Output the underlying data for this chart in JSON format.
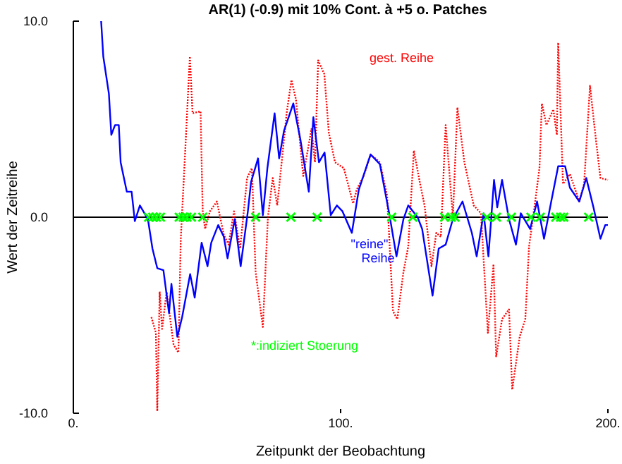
{
  "chart_data": {
    "type": "line",
    "title": "AR(1) (-0.9) mit 10% Cont. à +5 o. Patches",
    "xlabel": "Zeitpunkt der Beobachtung",
    "ylabel": "Wert der Zeitreihe",
    "xlim": [
      0,
      200
    ],
    "xticks": [
      {
        "value": 0,
        "label": "0."
      },
      {
        "value": 100,
        "label": "100."
      },
      {
        "value": 200,
        "label": "200."
      }
    ],
    "ylim": [
      -10,
      10
    ],
    "yticks": [
      {
        "value": -10,
        "label": "-10.0"
      },
      {
        "value": 0,
        "label": "0.0"
      },
      {
        "value": 10,
        "label": "10.0"
      }
    ],
    "grid": false,
    "ref_lines": [
      {
        "axis": "y",
        "value": 0,
        "color": "#000000"
      }
    ],
    "series": [
      {
        "name": "gest. Reihe",
        "color": "#ff0000",
        "line_style": "dotted",
        "x": [
          29.2,
          30.9,
          31.4,
          32.3,
          33.2,
          34.9,
          37.5,
          39.3,
          40.2,
          41.9,
          43.6,
          44.6,
          47.6,
          48.4,
          49.3,
          51.1,
          53.7,
          56.3,
          58.1,
          60.1,
          62.4,
          65,
          66.8,
          68.2,
          70.9,
          72.8,
          74.6,
          76.3,
          79.8,
          81.6,
          83.3,
          86,
          89.1,
          90.4,
          91.6,
          93.9,
          95.6,
          97.9,
          101.2,
          104.7,
          106,
          108.6,
          111.2,
          114.7,
          117.4,
          119.6,
          121.2,
          123.5,
          125.3,
          127.4,
          129.6,
          131.4,
          134,
          135.8,
          137.5,
          139.3,
          142,
          143.7,
          146.3,
          149.8,
          152.5,
          155.1,
          157.2,
          158.2,
          160.4,
          163,
          164.2,
          167,
          169.1,
          170.5,
          172.6,
          174.4,
          175.3,
          177,
          179.6,
          180.9,
          181.4,
          183.2,
          185.8,
          189.3,
          191.1,
          193.3,
          195.4,
          197.2,
          200
        ],
        "values": [
          -5.1,
          -5.9,
          -9.9,
          -3.8,
          -5.7,
          -3.8,
          -6.5,
          -6.9,
          -1.1,
          3.5,
          8.2,
          5.3,
          5.4,
          0.3,
          -0.6,
          0.3,
          0.8,
          -0.9,
          -1.4,
          0.3,
          -1.6,
          2.0,
          2.5,
          -2.8,
          -5.6,
          0,
          2.0,
          0.6,
          5.3,
          7.0,
          6.0,
          2.1,
          4.5,
          2.8,
          8.0,
          7.3,
          4.3,
          2.8,
          2.5,
          0.7,
          1.4,
          2.1,
          3.2,
          2.8,
          1.1,
          -4.8,
          -5.2,
          -2.8,
          -1.5,
          3.4,
          1.8,
          0.6,
          -2.5,
          -0.8,
          -1.0,
          4.7,
          0,
          5.6,
          2.8,
          0.6,
          0.2,
          -5.9,
          -2.4,
          -7.1,
          -5.2,
          -4.7,
          -8.8,
          -6.1,
          -5.2,
          -1.5,
          0.6,
          2.5,
          5.8,
          4.7,
          5.5,
          4.2,
          8.9,
          1.7,
          2.2,
          0.8,
          1.7,
          6.7,
          4.1,
          2.0,
          1.9
        ]
      },
      {
        "name": "\"reine\" Reihe",
        "color": "#0000ff",
        "line_style": "solid",
        "x": [
          10.4,
          11.2,
          13.3,
          14.2,
          15.6,
          17,
          17.7,
          20,
          21.8,
          23,
          24.9,
          27.9,
          29.6,
          31.4,
          33.7,
          35.8,
          36.7,
          38.9,
          40.7,
          43.7,
          45.4,
          48,
          50.2,
          51.6,
          54.2,
          56.3,
          57.7,
          60.4,
          62.6,
          65.3,
          66.5,
          69.1,
          70.9,
          72.6,
          75.3,
          77,
          78.8,
          82.3,
          84.9,
          88.1,
          89.8,
          91.9,
          94,
          96.3,
          98.6,
          100.7,
          104.2,
          106.8,
          111.2,
          114.7,
          118.3,
          120.9,
          123.5,
          125.3,
          128.8,
          130.5,
          134.4,
          136.7,
          139.3,
          142,
          145.6,
          149.1,
          150.9,
          153.5,
          155.3,
          157.4,
          158.6,
          160.4,
          163,
          165.6,
          167.4,
          170.9,
          173.5,
          176.1,
          178.8,
          181.4,
          184,
          185.8,
          189.3,
          191.9,
          194.6,
          197.2,
          199,
          200
        ],
        "values": [
          10,
          8.2,
          6.3,
          4.2,
          4.7,
          4.7,
          2.8,
          1.3,
          1.3,
          -0.2,
          0.6,
          -0.1,
          -1.6,
          -2.6,
          -2.7,
          -4.9,
          -3.4,
          -6.1,
          -5.1,
          -2.9,
          -4.1,
          -1.3,
          -2.5,
          -1.3,
          -0.4,
          -1.0,
          -2.1,
          -0.1,
          -2.5,
          0.3,
          1.8,
          3.0,
          0.1,
          2.5,
          5.3,
          3.0,
          4.4,
          5.8,
          4.0,
          1.3,
          5.1,
          2.8,
          3.3,
          0.1,
          0.6,
          0.3,
          -0.8,
          1.4,
          3.2,
          2.7,
          0.1,
          -2.0,
          -0.1,
          0.6,
          0,
          -0.6,
          -4.0,
          -1.6,
          -1.4,
          -0.1,
          0.8,
          -0.8,
          -2.0,
          0.2,
          -2.0,
          1.9,
          0.5,
          1.9,
          -0.1,
          -1.4,
          0.2,
          -0.6,
          0.8,
          -1.1,
          0.8,
          2.6,
          2.6,
          1.5,
          0.8,
          2.0,
          0.5,
          -1.1,
          -0.4,
          -0.4
        ]
      },
      {
        "name": "*:indiziert Stoerung",
        "type": "scatter",
        "marker": "cross",
        "color": "#00ff00",
        "x": [
          28.2,
          29.7,
          31.1,
          32.6,
          39.6,
          41.1,
          42.5,
          44.2,
          48.4,
          68.2,
          81.4,
          91.2,
          119.1,
          127,
          138.9,
          141.4,
          142.8,
          154.7,
          158.3,
          163.9,
          171.2,
          174.7,
          180.5,
          182.3,
          183.5,
          192.8
        ],
        "values": [
          0,
          0,
          0,
          0,
          0,
          0,
          0,
          0,
          0,
          0,
          0,
          0,
          0,
          0,
          0,
          0,
          0,
          0,
          0,
          0,
          0,
          0,
          0,
          0,
          0,
          0
        ]
      }
    ]
  }
}
